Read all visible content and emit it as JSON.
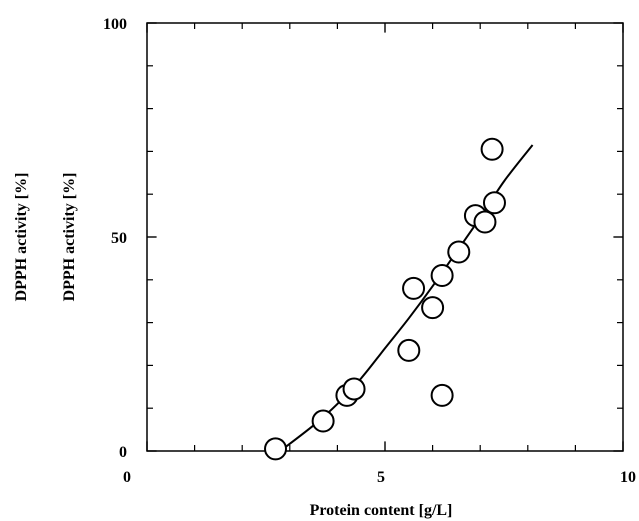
{
  "chart_data": {
    "type": "scatter",
    "xlabel": "Protein content [g/L]",
    "ylabel": "DPPH activity [%]",
    "ylabel_outer": "DPPH activity [%]",
    "xlim": [
      0,
      10
    ],
    "ylim": [
      0,
      100
    ],
    "x_major_ticks": [
      0,
      5,
      10
    ],
    "x_minor_ticks": [
      1,
      2,
      3,
      4,
      6,
      7,
      8,
      9
    ],
    "y_major_ticks": [
      0,
      50,
      100
    ],
    "y_minor_ticks": [
      10,
      20,
      30,
      40,
      60,
      70,
      80,
      90
    ],
    "x_tick_labels": [
      "0",
      "5",
      "10"
    ],
    "y_tick_labels": [
      "0",
      "50",
      "100"
    ],
    "grid": false,
    "series": [
      {
        "kind": "points",
        "marker": "open-circle",
        "points": [
          {
            "x": 2.7,
            "y": 0.5
          },
          {
            "x": 3.7,
            "y": 7
          },
          {
            "x": 4.2,
            "y": 13
          },
          {
            "x": 4.35,
            "y": 14.5
          },
          {
            "x": 5.5,
            "y": 23.5
          },
          {
            "x": 5.6,
            "y": 38
          },
          {
            "x": 6.0,
            "y": 33.5
          },
          {
            "x": 6.2,
            "y": 41
          },
          {
            "x": 6.2,
            "y": 13
          },
          {
            "x": 6.55,
            "y": 46.5
          },
          {
            "x": 6.9,
            "y": 55
          },
          {
            "x": 7.1,
            "y": 53.5
          },
          {
            "x": 7.25,
            "y": 70.5
          },
          {
            "x": 7.3,
            "y": 58
          }
        ]
      },
      {
        "kind": "fit-curve",
        "points": [
          {
            "x": 2.8,
            "y": 0
          },
          {
            "x": 3.5,
            "y": 6
          },
          {
            "x": 4.0,
            "y": 11
          },
          {
            "x": 4.5,
            "y": 17
          },
          {
            "x": 5.0,
            "y": 24
          },
          {
            "x": 5.5,
            "y": 31
          },
          {
            "x": 6.0,
            "y": 38.5
          },
          {
            "x": 6.5,
            "y": 46.5
          },
          {
            "x": 7.0,
            "y": 54.5
          },
          {
            "x": 7.5,
            "y": 63
          },
          {
            "x": 8.1,
            "y": 71.5
          }
        ]
      }
    ]
  }
}
